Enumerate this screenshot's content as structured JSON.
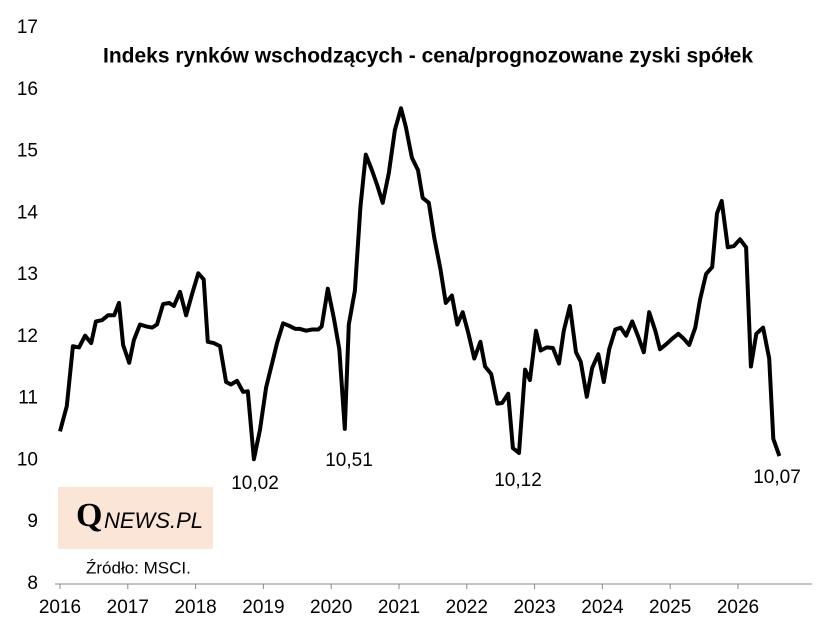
{
  "chart_data": {
    "type": "line",
    "title": "Indeks rynków wschodzących - cena/prognozowane zyski spółek",
    "color": "#000000",
    "x": [
      2016.0,
      2016.1,
      2016.19,
      2016.28,
      2016.37,
      2016.46,
      2016.53,
      2016.62,
      2016.71,
      2016.8,
      2016.87,
      2016.93,
      2017.02,
      2017.09,
      2017.18,
      2017.27,
      2017.36,
      2017.43,
      2017.52,
      2017.61,
      2017.68,
      2017.77,
      2017.86,
      2017.95,
      2018.04,
      2018.12,
      2018.18,
      2018.27,
      2018.36,
      2018.45,
      2018.52,
      2018.61,
      2018.7,
      2018.77,
      2018.86,
      2018.95,
      2019.04,
      2019.13,
      2019.2,
      2019.29,
      2019.38,
      2019.47,
      2019.54,
      2019.63,
      2019.72,
      2019.81,
      2019.86,
      2019.95,
      2020.04,
      2020.12,
      2020.2,
      2020.26,
      2020.35,
      2020.43,
      2020.51,
      2020.6,
      2020.68,
      2020.76,
      2020.85,
      2020.94,
      2021.03,
      2021.1,
      2021.19,
      2021.28,
      2021.35,
      2021.44,
      2021.52,
      2021.61,
      2021.69,
      2021.78,
      2021.86,
      2021.94,
      2022.02,
      2022.11,
      2022.2,
      2022.27,
      2022.36,
      2022.45,
      2022.52,
      2022.61,
      2022.68,
      2022.77,
      2022.86,
      2022.93,
      2023.02,
      2023.09,
      2023.18,
      2023.27,
      2023.36,
      2023.43,
      2023.52,
      2023.61,
      2023.68,
      2023.77,
      2023.85,
      2023.94,
      2024.02,
      2024.1,
      2024.19,
      2024.27,
      2024.35,
      2024.44,
      2024.53,
      2024.61,
      2024.69,
      2024.78,
      2024.85,
      2024.94,
      2025.03,
      2025.12,
      2025.19,
      2025.28,
      2025.37,
      2025.44,
      2025.53,
      2025.62,
      2025.69,
      2025.76,
      2025.85,
      2025.94,
      2026.03,
      2026.12,
      2026.19,
      2026.27,
      2026.37,
      2026.46,
      2026.52,
      2026.61
    ],
    "values": [
      10.47,
      10.88,
      11.85,
      11.83,
      12.02,
      11.9,
      12.25,
      12.27,
      12.35,
      12.35,
      12.55,
      11.87,
      11.58,
      11.95,
      12.2,
      12.17,
      12.15,
      12.2,
      12.53,
      12.55,
      12.5,
      12.73,
      12.35,
      12.7,
      13.03,
      12.93,
      11.92,
      11.9,
      11.85,
      11.27,
      11.23,
      11.29,
      11.11,
      11.12,
      10.02,
      10.5,
      11.18,
      11.58,
      11.9,
      12.22,
      12.18,
      12.13,
      12.13,
      12.1,
      12.12,
      12.12,
      12.17,
      12.78,
      12.3,
      11.8,
      10.51,
      12.2,
      12.75,
      14.1,
      14.95,
      14.7,
      14.45,
      14.17,
      14.65,
      15.35,
      15.7,
      15.4,
      14.9,
      14.7,
      14.25,
      14.17,
      13.6,
      13.1,
      12.55,
      12.67,
      12.2,
      12.4,
      12.07,
      11.65,
      11.92,
      11.52,
      11.4,
      10.92,
      10.93,
      11.08,
      10.2,
      10.12,
      11.47,
      11.3,
      12.1,
      11.78,
      11.83,
      11.82,
      11.57,
      12.1,
      12.5,
      11.75,
      11.6,
      11.03,
      11.5,
      11.72,
      11.27,
      11.8,
      12.12,
      12.15,
      12.02,
      12.25,
      12.0,
      11.75,
      12.4,
      12.1,
      11.8,
      11.88,
      11.97,
      12.05,
      11.98,
      11.87,
      12.15,
      12.6,
      13.02,
      13.13,
      14.0,
      14.2,
      13.45,
      13.47,
      13.58,
      13.45,
      11.52,
      12.05,
      12.15,
      11.65,
      10.35,
      10.07
    ],
    "annotations": [
      "10,02",
      "10,51",
      "10,12",
      "10,07"
    ],
    "xlim": [
      2016,
      2027.1
    ],
    "xticks": [
      2016,
      2017,
      2018,
      2019,
      2020,
      2021,
      2022,
      2023,
      2024,
      2025,
      2026
    ],
    "ylim": [
      8,
      17
    ],
    "yticks": [
      8,
      9,
      10,
      11,
      12,
      13,
      14,
      15,
      16,
      17
    ],
    "grid": false
  },
  "logo": {
    "mark": "Q",
    "text": "NEWS.PL"
  },
  "source": "Źródło: MSCI."
}
